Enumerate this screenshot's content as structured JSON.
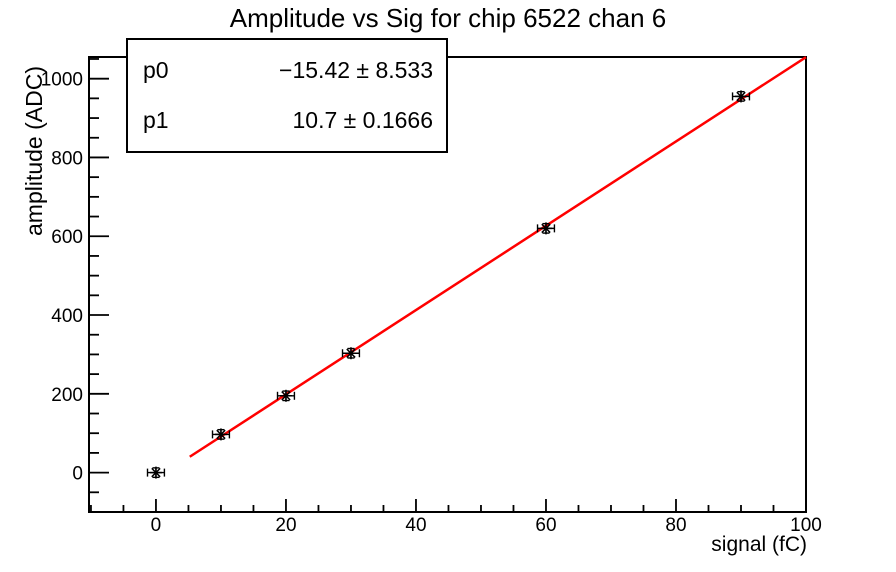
{
  "title": "Amplitude vs Sig for chip 6522 chan 6",
  "stats_box": {
    "rows": [
      {
        "name": "p0",
        "value": "−15.42 ± 8.533"
      },
      {
        "name": "p1",
        "value": "10.7 ± 0.1666"
      }
    ]
  },
  "chart_data": {
    "type": "scatter",
    "title": "Amplitude vs Sig for chip 6522 chan 6",
    "xlabel": "signal (fC)",
    "ylabel": "amplitude (ADC)",
    "xlim": [
      -10.3,
      100
    ],
    "ylim": [
      -100,
      1055
    ],
    "x_major_ticks": [
      0,
      20,
      40,
      60,
      80,
      100
    ],
    "x_minor_step": 5,
    "y_major_ticks": [
      0,
      200,
      400,
      600,
      800,
      1000
    ],
    "y_minor_step": 50,
    "grid": false,
    "marker_style": "asterisk-with-error-bars",
    "points": [
      {
        "x": 0,
        "y": 0,
        "ex": 1.3,
        "ey": 12
      },
      {
        "x": 10,
        "y": 97,
        "ex": 1.3,
        "ey": 12
      },
      {
        "x": 20,
        "y": 195,
        "ex": 1.3,
        "ey": 12
      },
      {
        "x": 30,
        "y": 303,
        "ex": 1.3,
        "ey": 12
      },
      {
        "x": 60,
        "y": 620,
        "ex": 1.3,
        "ey": 12
      },
      {
        "x": 90,
        "y": 955,
        "ex": 1.3,
        "ey": 12
      }
    ],
    "fit": {
      "p0": -15.42,
      "p0_err": 8.533,
      "p1": 10.7,
      "p1_err": 0.1666,
      "x_range": [
        5.2,
        100
      ],
      "color": "#ff0000"
    }
  },
  "colors": {
    "fit_line": "#ff0000",
    "axis": "#000000",
    "marker": "#000000",
    "background": "#ffffff"
  }
}
